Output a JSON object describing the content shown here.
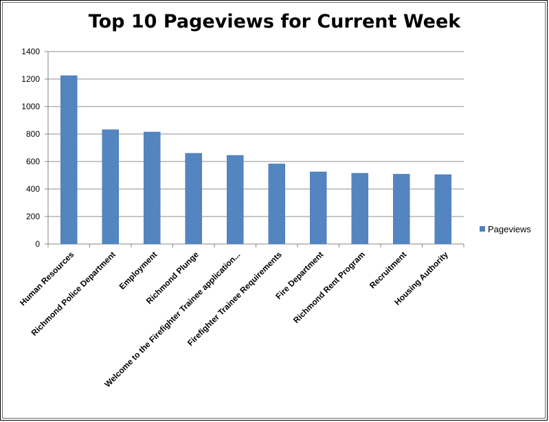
{
  "chart_data": {
    "type": "bar",
    "title": "Top 10 Pageviews for Current Week",
    "xlabel": "",
    "ylabel": "",
    "categories": [
      "Human Resources",
      "Richmond Police Department",
      "Employment",
      "Richmond Plunge",
      "Welcome to the Firefighter Trainee application...",
      "Firefighter Trainee Requirements",
      "Fire Department",
      "Richmond Rent Program",
      "Recruitment",
      "Housing Authority"
    ],
    "series": [
      {
        "name": "Pageviews",
        "color": "#4f81bd",
        "values": [
          1225,
          832,
          815,
          660,
          645,
          583,
          525,
          515,
          508,
          505
        ]
      }
    ],
    "ylim": [
      0,
      1400
    ],
    "yticks": [
      0,
      200,
      400,
      600,
      800,
      1000,
      1200,
      1400
    ],
    "grid": true,
    "legend": "right"
  }
}
